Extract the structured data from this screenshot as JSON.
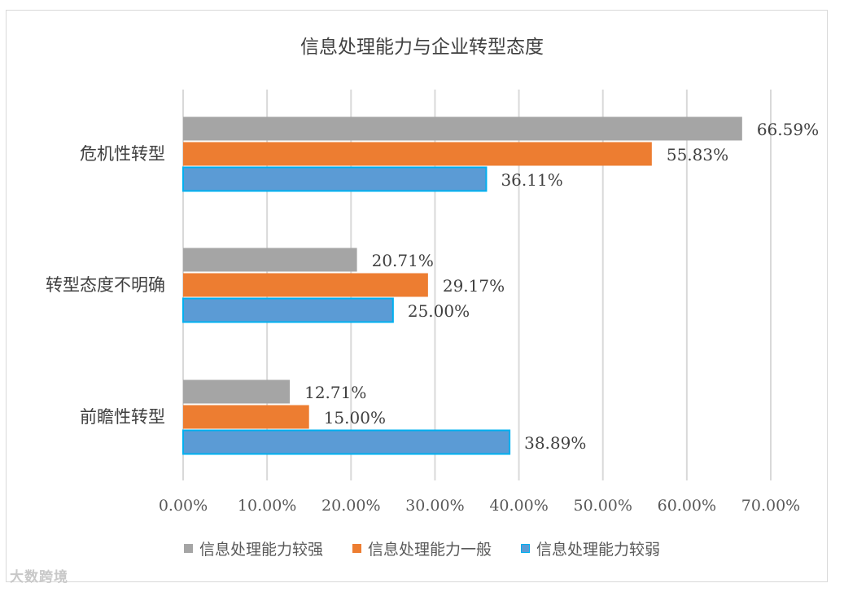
{
  "watermark": "大数跨境",
  "chart_data": {
    "type": "bar",
    "orientation": "horizontal",
    "title": "信息处理能力与企业转型态度",
    "categories": [
      "危机性转型",
      "转型态度不明确",
      "前瞻性转型"
    ],
    "series": [
      {
        "name": "信息处理能力较强",
        "color": "#a5a5a5",
        "values": [
          66.59,
          20.71,
          12.71
        ],
        "labels": [
          "66.59%",
          "20.71%",
          "12.71%"
        ]
      },
      {
        "name": "信息处理能力一般",
        "color": "#ed7d31",
        "values": [
          55.83,
          29.17,
          15.0
        ],
        "labels": [
          "55.83%",
          "29.17%",
          "15.00%"
        ]
      },
      {
        "name": "信息处理能力较弱",
        "color": "#5b9bd5",
        "border": "#00b0f0",
        "values": [
          36.11,
          25.0,
          38.89
        ],
        "labels": [
          "36.11%",
          "25.00%",
          "38.89%"
        ]
      }
    ],
    "xlim": [
      0,
      70
    ],
    "xticks": [
      "0.00%",
      "10.00%",
      "20.00%",
      "30.00%",
      "40.00%",
      "50.00%",
      "60.00%",
      "70.00%"
    ],
    "grid": true,
    "legend_position": "bottom"
  }
}
